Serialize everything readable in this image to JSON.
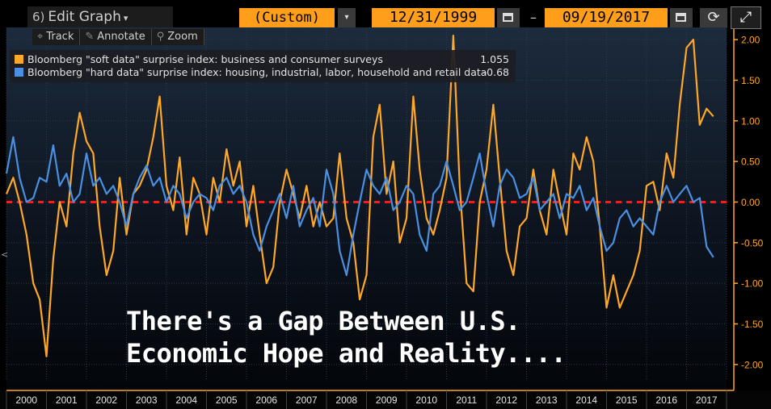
{
  "toolbar": {
    "edit_graph_prefix": "6)",
    "edit_graph_label": "Edit Graph",
    "caret": "▾",
    "range_label": "(Custom)",
    "range_caret": "▾",
    "start_date": "12/31/1999",
    "separator": "–",
    "end_date": "09/19/2017",
    "refresh_glyph": "⟳",
    "expand_glyph": "⤢",
    "tools": [
      {
        "icon": "crosshair-icon",
        "glyph": "⌖",
        "label": "Track"
      },
      {
        "icon": "pencil-icon",
        "glyph": "✎",
        "label": "Annotate"
      },
      {
        "icon": "magnifier-icon",
        "glyph": "⚲",
        "label": "Zoom"
      }
    ]
  },
  "legend": {
    "items": [
      {
        "label": "Bloomberg \"soft data\" surprise index: business and consumer surveys",
        "value": "1.055",
        "color": "#ffa726"
      },
      {
        "label": "Bloomberg \"hard data\" surprise index: housing, industrial, labor, household and retail data",
        "value": "-0.68",
        "color": "#4a90e2"
      }
    ]
  },
  "headline": {
    "line1": "There's a Gap Between U.S.",
    "line2": "Economic Hope and Reality...."
  },
  "left_marker": "<",
  "chart_data": {
    "type": "line",
    "title": "",
    "xlabel": "",
    "ylabel": "",
    "ylim": [
      -2.2,
      2.15
    ],
    "y_ticks": [
      "2.00",
      "1.50",
      "1.00",
      "0.50",
      "0.00",
      "-0.50",
      "-1.00",
      "-1.50",
      "-2.00"
    ],
    "x_ticks": [
      "2000",
      "2001",
      "2002",
      "2003",
      "2004",
      "2005",
      "2006",
      "2007",
      "2008",
      "2009",
      "2010",
      "2011",
      "2012",
      "2013",
      "2014",
      "2015",
      "2016",
      "2017"
    ],
    "grid": true,
    "zero_line": {
      "value": 0.0,
      "color": "#ff1a1a",
      "style": "dashed"
    },
    "background": "#000000",
    "series": [
      {
        "name": "Bloomberg \"soft data\" surprise index: business and consumer surveys",
        "color": "#ffa726",
        "x": [
          2000.0,
          2000.17,
          2000.33,
          2000.5,
          2000.67,
          2000.83,
          2001.0,
          2001.17,
          2001.33,
          2001.5,
          2001.67,
          2001.83,
          2002.0,
          2002.17,
          2002.33,
          2002.5,
          2002.67,
          2002.83,
          2003.0,
          2003.17,
          2003.33,
          2003.5,
          2003.67,
          2003.83,
          2004.0,
          2004.17,
          2004.33,
          2004.5,
          2004.67,
          2004.83,
          2005.0,
          2005.17,
          2005.33,
          2005.5,
          2005.67,
          2005.83,
          2006.0,
          2006.17,
          2006.33,
          2006.5,
          2006.67,
          2006.83,
          2007.0,
          2007.17,
          2007.33,
          2007.5,
          2007.67,
          2007.83,
          2008.0,
          2008.17,
          2008.33,
          2008.5,
          2008.67,
          2008.83,
          2009.0,
          2009.17,
          2009.33,
          2009.5,
          2009.67,
          2009.83,
          2010.0,
          2010.17,
          2010.33,
          2010.5,
          2010.67,
          2010.83,
          2011.0,
          2011.17,
          2011.33,
          2011.5,
          2011.67,
          2011.83,
          2012.0,
          2012.17,
          2012.33,
          2012.5,
          2012.67,
          2012.83,
          2013.0,
          2013.17,
          2013.33,
          2013.5,
          2013.67,
          2013.83,
          2014.0,
          2014.17,
          2014.33,
          2014.5,
          2014.67,
          2014.83,
          2015.0,
          2015.17,
          2015.33,
          2015.5,
          2015.67,
          2015.83,
          2016.0,
          2016.17,
          2016.33,
          2016.5,
          2016.67,
          2016.83,
          2017.0,
          2017.17,
          2017.33,
          2017.5,
          2017.67
        ],
        "values": [
          0.1,
          0.3,
          0.0,
          -0.4,
          -1.0,
          -1.2,
          -1.9,
          -0.7,
          0.0,
          -0.3,
          0.6,
          1.1,
          0.75,
          0.6,
          -0.3,
          -0.9,
          -0.6,
          0.3,
          -0.4,
          0.1,
          0.2,
          0.4,
          0.8,
          1.3,
          0.2,
          -0.1,
          0.55,
          -0.4,
          0.3,
          0.1,
          -0.4,
          0.3,
          0.0,
          0.65,
          0.2,
          0.5,
          -0.3,
          0.2,
          -0.4,
          -1.0,
          -0.8,
          0.0,
          0.4,
          0.1,
          -0.2,
          0.2,
          -0.3,
          0.0,
          -0.3,
          -0.2,
          0.6,
          -0.2,
          -0.5,
          -1.2,
          -0.9,
          0.8,
          1.2,
          0.1,
          0.5,
          -0.5,
          -0.2,
          1.3,
          0.4,
          -0.2,
          -0.4,
          -0.1,
          0.3,
          2.05,
          0.2,
          -1.0,
          -1.1,
          0.0,
          0.4,
          1.2,
          0.3,
          -0.6,
          -0.9,
          -0.3,
          -0.2,
          0.4,
          -0.1,
          -0.4,
          0.4,
          0.0,
          -0.4,
          0.6,
          0.4,
          0.8,
          0.5,
          -0.3,
          -1.3,
          -0.9,
          -1.3,
          -1.1,
          -0.9,
          -0.6,
          0.2,
          0.25,
          -0.1,
          0.6,
          0.3,
          1.2,
          1.9,
          2.0,
          0.95,
          1.15,
          1.055
        ]
      },
      {
        "name": "Bloomberg \"hard data\" surprise index: housing, industrial, labor, household and retail data",
        "color": "#4a90e2",
        "x": [
          2000.0,
          2000.17,
          2000.33,
          2000.5,
          2000.67,
          2000.83,
          2001.0,
          2001.17,
          2001.33,
          2001.5,
          2001.67,
          2001.83,
          2002.0,
          2002.17,
          2002.33,
          2002.5,
          2002.67,
          2002.83,
          2003.0,
          2003.17,
          2003.33,
          2003.5,
          2003.67,
          2003.83,
          2004.0,
          2004.17,
          2004.33,
          2004.5,
          2004.67,
          2004.83,
          2005.0,
          2005.17,
          2005.33,
          2005.5,
          2005.67,
          2005.83,
          2006.0,
          2006.17,
          2006.33,
          2006.5,
          2006.67,
          2006.83,
          2007.0,
          2007.17,
          2007.33,
          2007.5,
          2007.67,
          2007.83,
          2008.0,
          2008.17,
          2008.33,
          2008.5,
          2008.67,
          2008.83,
          2009.0,
          2009.17,
          2009.33,
          2009.5,
          2009.67,
          2009.83,
          2010.0,
          2010.17,
          2010.33,
          2010.5,
          2010.67,
          2010.83,
          2011.0,
          2011.17,
          2011.33,
          2011.5,
          2011.67,
          2011.83,
          2012.0,
          2012.17,
          2012.33,
          2012.5,
          2012.67,
          2012.83,
          2013.0,
          2013.17,
          2013.33,
          2013.5,
          2013.67,
          2013.83,
          2014.0,
          2014.17,
          2014.33,
          2014.5,
          2014.67,
          2014.83,
          2015.0,
          2015.17,
          2015.33,
          2015.5,
          2015.67,
          2015.83,
          2016.0,
          2016.17,
          2016.33,
          2016.5,
          2016.67,
          2016.83,
          2017.0,
          2017.17,
          2017.33,
          2017.5,
          2017.67
        ],
        "values": [
          0.35,
          0.8,
          0.3,
          0.0,
          0.05,
          0.3,
          0.25,
          0.7,
          0.2,
          0.35,
          0.0,
          0.1,
          0.6,
          0.2,
          0.3,
          0.1,
          0.2,
          0.0,
          -0.3,
          0.1,
          0.3,
          0.45,
          0.2,
          0.3,
          0.0,
          0.2,
          0.1,
          -0.2,
          0.0,
          0.1,
          0.05,
          -0.1,
          0.2,
          0.3,
          0.1,
          0.2,
          0.0,
          -0.4,
          -0.6,
          -0.3,
          -0.1,
          0.1,
          -0.2,
          0.2,
          -0.3,
          -0.1,
          0.05,
          -0.3,
          0.4,
          0.1,
          -0.6,
          -0.9,
          -0.4,
          0.0,
          0.4,
          0.2,
          0.1,
          0.3,
          -0.1,
          0.0,
          0.2,
          0.1,
          -0.4,
          -0.6,
          0.1,
          0.2,
          0.5,
          0.2,
          -0.1,
          0.0,
          0.3,
          0.6,
          0.1,
          -0.3,
          0.2,
          0.4,
          0.3,
          0.05,
          0.1,
          0.3,
          -0.1,
          0.0,
          0.1,
          -0.2,
          0.1,
          0.05,
          0.2,
          -0.1,
          0.05,
          -0.3,
          -0.6,
          -0.5,
          -0.2,
          -0.1,
          -0.3,
          -0.2,
          -0.3,
          -0.4,
          0.0,
          0.2,
          0.0,
          0.1,
          0.2,
          0.0,
          0.05,
          -0.55,
          -0.68
        ]
      }
    ]
  }
}
